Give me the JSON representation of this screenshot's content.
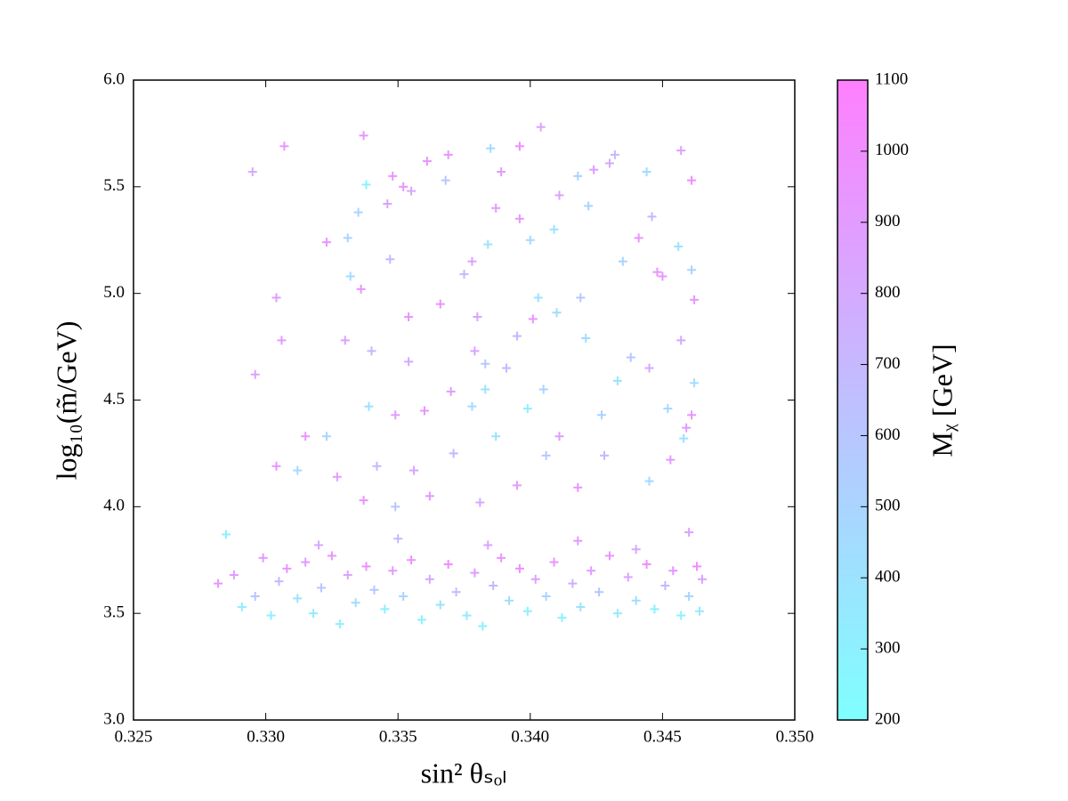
{
  "chart_data": {
    "type": "scatter",
    "xlabel": "sin² θₛₒₗ",
    "ylabel": "log₁₀(m̃/GeV)",
    "colorbar_label": "Mᵪ [GeV]",
    "xlim": [
      0.325,
      0.35
    ],
    "xticks": [
      0.325,
      {
        "value": 0.33,
        "label": "0.330"
      },
      0.335,
      {
        "value": 0.34,
        "label": "0.340"
      },
      0.345,
      {
        "value": 0.35,
        "label": "0.350"
      }
    ],
    "ylim": [
      3.0,
      6.0
    ],
    "yticks": [
      {
        "value": 3,
        "label": "3.0"
      },
      3.5,
      {
        "value": 4,
        "label": "4.0"
      },
      4.5,
      {
        "value": 5,
        "label": "5.0"
      },
      5.5,
      {
        "value": 6,
        "label": "6.0"
      }
    ],
    "clim": [
      200,
      1100
    ],
    "cticks": [
      200,
      300,
      400,
      500,
      600,
      700,
      800,
      900,
      1000,
      1100
    ],
    "colormap": [
      "#00ffff",
      "#ff00ff"
    ],
    "alpha": 0.5,
    "marker": "+",
    "x": [
      0.3295,
      0.3307,
      0.3337,
      0.3296,
      0.3304,
      0.3306,
      0.3304,
      0.3323,
      0.3331,
      0.3335,
      0.3338,
      0.3336,
      0.333,
      0.3332,
      0.334,
      0.3346,
      0.3348,
      0.3352,
      0.3355,
      0.3347,
      0.3354,
      0.3354,
      0.3361,
      0.3369,
      0.3368,
      0.3366,
      0.3375,
      0.3378,
      0.338,
      0.3383,
      0.3385,
      0.3389,
      0.3387,
      0.3384,
      0.3396,
      0.3396,
      0.34,
      0.3401,
      0.3404,
      0.3409,
      0.3411,
      0.3418,
      0.3422,
      0.3424,
      0.343,
      0.3432,
      0.3435,
      0.3441,
      0.3444,
      0.3446,
      0.3448,
      0.345,
      0.3456,
      0.3457,
      0.3461,
      0.3462,
      0.3461,
      0.3403,
      0.341,
      0.3395,
      0.3419,
      0.3421,
      0.3438,
      0.3445,
      0.3457,
      0.3462,
      0.3461,
      0.3459,
      0.3452,
      0.3433,
      0.3427,
      0.3405,
      0.3387,
      0.3378,
      0.337,
      0.336,
      0.3349,
      0.3342,
      0.3337,
      0.3327,
      0.3315,
      0.3312,
      0.3323,
      0.3339,
      0.3379,
      0.3391,
      0.3411,
      0.3418,
      0.3428,
      0.3445,
      0.3453,
      0.3458,
      0.3362,
      0.3371,
      0.3395,
      0.3406,
      0.3381,
      0.3356,
      0.3383,
      0.3399,
      0.3349,
      0.3282,
      0.3285,
      0.3288,
      0.3291,
      0.3296,
      0.3299,
      0.3302,
      0.3305,
      0.3308,
      0.3312,
      0.3315,
      0.3318,
      0.3321,
      0.3325,
      0.3328,
      0.3331,
      0.3334,
      0.3338,
      0.3341,
      0.3345,
      0.3348,
      0.3352,
      0.3355,
      0.3359,
      0.3362,
      0.3366,
      0.3369,
      0.3372,
      0.3376,
      0.3379,
      0.3382,
      0.3386,
      0.3389,
      0.3392,
      0.3396,
      0.3399,
      0.3402,
      0.3406,
      0.3409,
      0.3412,
      0.3416,
      0.3419,
      0.3423,
      0.3426,
      0.343,
      0.3433,
      0.3437,
      0.344,
      0.3444,
      0.3447,
      0.3451,
      0.3454,
      0.3457,
      0.346,
      0.3463,
      0.3464,
      0.3465,
      0.3384,
      0.335,
      0.3418,
      0.344,
      0.332,
      0.346
    ],
    "values": [
      5.57,
      5.69,
      5.74,
      4.62,
      4.98,
      4.78,
      4.19,
      5.24,
      5.26,
      5.38,
      5.51,
      5.02,
      4.78,
      5.08,
      4.73,
      5.42,
      5.55,
      5.5,
      5.48,
      5.16,
      4.89,
      4.68,
      5.62,
      5.65,
      5.53,
      4.95,
      5.09,
      5.15,
      4.89,
      4.67,
      5.68,
      5.57,
      5.4,
      5.23,
      5.69,
      5.35,
      5.25,
      4.88,
      5.78,
      5.3,
      5.46,
      5.55,
      5.41,
      5.58,
      5.61,
      5.65,
      5.15,
      5.26,
      5.57,
      5.36,
      5.1,
      5.08,
      5.22,
      5.67,
      5.11,
      4.97,
      5.53,
      4.98,
      4.91,
      4.8,
      4.98,
      4.79,
      4.7,
      4.65,
      4.78,
      4.58,
      4.43,
      4.37,
      4.46,
      4.59,
      4.43,
      4.55,
      4.33,
      4.47,
      4.54,
      4.45,
      4.43,
      4.19,
      4.03,
      4.14,
      4.33,
      4.17,
      4.33,
      4.47,
      4.73,
      4.65,
      4.33,
      4.09,
      4.24,
      4.12,
      4.22,
      4.32,
      4.05,
      4.25,
      4.1,
      4.24,
      4.02,
      4.17,
      4.55,
      4.46,
      4.0,
      3.64,
      3.87,
      3.68,
      3.53,
      3.58,
      3.76,
      3.49,
      3.65,
      3.71,
      3.57,
      3.74,
      3.5,
      3.62,
      3.77,
      3.45,
      3.68,
      3.55,
      3.72,
      3.61,
      3.52,
      3.7,
      3.58,
      3.75,
      3.47,
      3.66,
      3.54,
      3.73,
      3.6,
      3.49,
      3.69,
      3.44,
      3.63,
      3.76,
      3.56,
      3.71,
      3.51,
      3.66,
      3.58,
      3.74,
      3.48,
      3.64,
      3.53,
      3.7,
      3.6,
      3.77,
      3.5,
      3.67,
      3.56,
      3.73,
      3.52,
      3.63,
      3.7,
      3.49,
      3.58,
      3.72,
      3.51,
      3.66,
      3.82,
      3.85,
      3.84,
      3.8,
      3.82,
      3.88
    ],
    "color_values": [
      800,
      950,
      950,
      850,
      900,
      900,
      950,
      950,
      500,
      500,
      300,
      950,
      850,
      450,
      700,
      850,
      950,
      950,
      800,
      700,
      950,
      800,
      950,
      950,
      600,
      950,
      700,
      850,
      850,
      600,
      450,
      900,
      900,
      400,
      1000,
      950,
      450,
      950,
      850,
      400,
      850,
      500,
      500,
      900,
      800,
      700,
      500,
      950,
      450,
      700,
      950,
      950,
      400,
      850,
      500,
      950,
      1000,
      400,
      450,
      700,
      600,
      450,
      600,
      800,
      800,
      450,
      950,
      900,
      450,
      400,
      500,
      500,
      400,
      450,
      900,
      950,
      900,
      700,
      950,
      900,
      950,
      450,
      500,
      400,
      850,
      700,
      900,
      950,
      700,
      450,
      900,
      400,
      950,
      700,
      900,
      600,
      800,
      850,
      400,
      300,
      600,
      950,
      300,
      900,
      300,
      600,
      900,
      300,
      700,
      950,
      400,
      900,
      350,
      600,
      950,
      300,
      850,
      450,
      1000,
      600,
      300,
      900,
      500,
      950,
      300,
      800,
      400,
      1000,
      650,
      350,
      900,
      300,
      700,
      950,
      450,
      1000,
      300,
      850,
      500,
      950,
      300,
      750,
      400,
      900,
      600,
      950,
      350,
      850,
      450,
      1000,
      300,
      700,
      950,
      300,
      500,
      1000,
      350,
      850,
      850,
      700,
      900,
      800,
      800,
      850
    ]
  }
}
